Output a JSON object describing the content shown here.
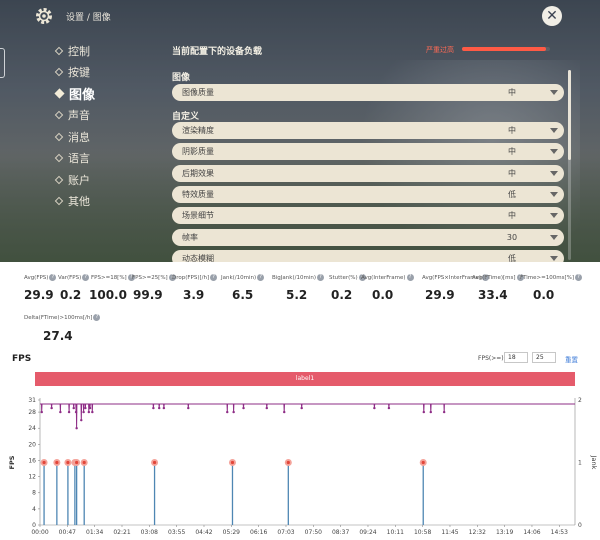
{
  "game": {
    "breadcrumb": "设置 / 图像",
    "nav": [
      "控制",
      "按键",
      "图像",
      "声音",
      "消息",
      "语言",
      "账户",
      "其他"
    ],
    "active_nav_index": 2,
    "load_title": "当前配置下的设备负载",
    "load_status": "严重过高",
    "load_level": 0.95,
    "image_section": "图像",
    "image_quality": {
      "label": "图像质量",
      "value": "中"
    },
    "custom_section": "自定义",
    "custom_rows": [
      {
        "label": "渲染精度",
        "value": "中"
      },
      {
        "label": "阴影质量",
        "value": "中"
      },
      {
        "label": "后期效果",
        "value": "中"
      },
      {
        "label": "特效质量",
        "value": "低"
      },
      {
        "label": "场景细节",
        "value": "中"
      },
      {
        "label": "帧率",
        "value": "30"
      },
      {
        "label": "动态模糊",
        "value": "低"
      }
    ]
  },
  "stats": [
    {
      "label": "Avg(FPS)",
      "value": "29.9"
    },
    {
      "label": "Var(FPS)",
      "value": "0.2"
    },
    {
      "label": "FPS>=18[%]",
      "value": "100.0"
    },
    {
      "label": "FPS>=25[%]",
      "value": "99.9"
    },
    {
      "label": "Drop(FPS)[/h]",
      "value": "3.9"
    },
    {
      "label": "Jank(/10min)",
      "value": "6.5"
    },
    {
      "label": "BigJank(/10min)",
      "value": "5.2"
    },
    {
      "label": "Stutter(%)",
      "value": "0.2"
    },
    {
      "label": "Avg(InterFrame)",
      "value": "0.0"
    },
    {
      "label": "Avg(FPS×InterFrame)",
      "value": "29.9"
    },
    {
      "label": "Avg(FTime)[ms]",
      "value": "33.4"
    },
    {
      "label": "FTime>=100ms[%]",
      "value": "0.0"
    }
  ],
  "stats_row2": {
    "label": "Delta(FTime)>100ms[/h]",
    "value": "27.4"
  },
  "panel": {
    "title": "FPS",
    "filter_label": "FPS(>=)",
    "filter_low": "18",
    "filter_high": "25",
    "reset_label": "重置",
    "label_bar": "label1"
  },
  "chart_data": {
    "type": "line",
    "ylabel": "FPS",
    "y2label": "Jank",
    "y_ticks": [
      0,
      4,
      8,
      12,
      16,
      20,
      24,
      28,
      31
    ],
    "y2_ticks": [
      0,
      1,
      2
    ],
    "ylim": [
      0,
      31
    ],
    "y2lim": [
      0,
      2
    ],
    "x_ticks": [
      "00:00",
      "00:47",
      "01:34",
      "02:21",
      "03:08",
      "03:55",
      "04:42",
      "05:29",
      "06:16",
      "07:03",
      "07:50",
      "08:37",
      "09:24",
      "10:11",
      "10:58",
      "11:45",
      "12:32",
      "13:19",
      "14:06",
      "14:53"
    ],
    "x_tick_seconds": [
      0,
      47,
      94,
      141,
      188,
      235,
      282,
      329,
      376,
      423,
      470,
      517,
      564,
      611,
      658,
      705,
      752,
      799,
      846,
      893
    ],
    "xlim_seconds": [
      0,
      920
    ],
    "fps_baseline": 30,
    "fps_dips_seconds": [
      3,
      20,
      35,
      50,
      58,
      62,
      63,
      71,
      75,
      78,
      84,
      86,
      90,
      195,
      205,
      213,
      255,
      322,
      333,
      350,
      390,
      420,
      450,
      575,
      600,
      660,
      672,
      695
    ],
    "fps_dip_values": [
      28,
      29,
      28,
      28,
      29,
      28,
      24,
      26,
      28,
      29,
      28,
      29,
      28,
      29,
      29,
      29,
      29,
      28,
      28,
      29,
      29,
      28,
      29,
      29,
      29,
      28,
      28,
      28
    ],
    "jank_seconds": [
      7,
      29,
      48,
      60,
      63,
      76,
      197,
      331,
      427,
      659
    ],
    "jank_values": [
      1,
      1,
      1,
      1,
      1,
      1,
      1,
      1,
      1,
      1
    ]
  }
}
